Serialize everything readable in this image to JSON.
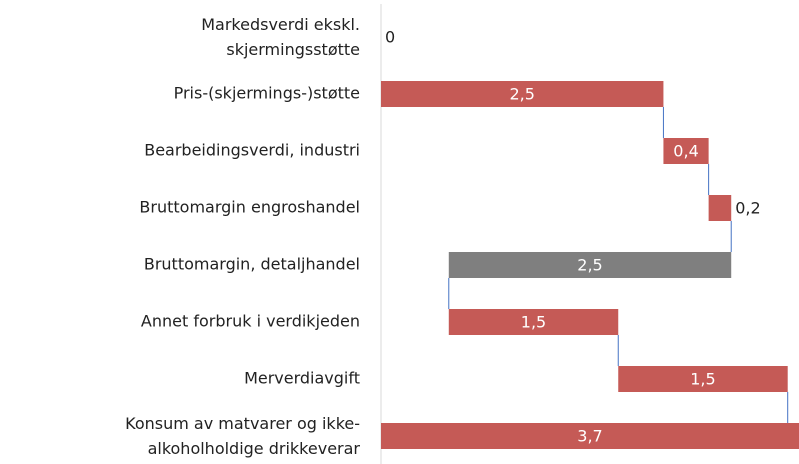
{
  "chart_data": {
    "type": "waterfall",
    "categories": [
      "Markedsverdi ekskl. skjermingsstøtte",
      "Pris-(skjermings-)støtte",
      "Bearbeidingsverdi, industri",
      "Bruttomargin engroshandel",
      "Bruttomargin, detaljhandel",
      "Annet forbruk i verdikjeden",
      "Merverdiavgift",
      "Konsum av matvarer og ikke-alkoholholdige drikkeverar"
    ],
    "values": [
      0,
      2.5,
      0.4,
      0.2,
      -2.5,
      1.5,
      1.5,
      3.7
    ],
    "value_labels": [
      "0",
      "2,5",
      "0,4",
      "0,2",
      "2,5",
      "1,5",
      "1,5",
      "3,7"
    ],
    "increase_color": "#c55a56",
    "decrease_color": "#7f7f7f",
    "total_color": "#c55a56",
    "connector_color": "#4472c4",
    "xlim": [
      0,
      3.7
    ]
  }
}
